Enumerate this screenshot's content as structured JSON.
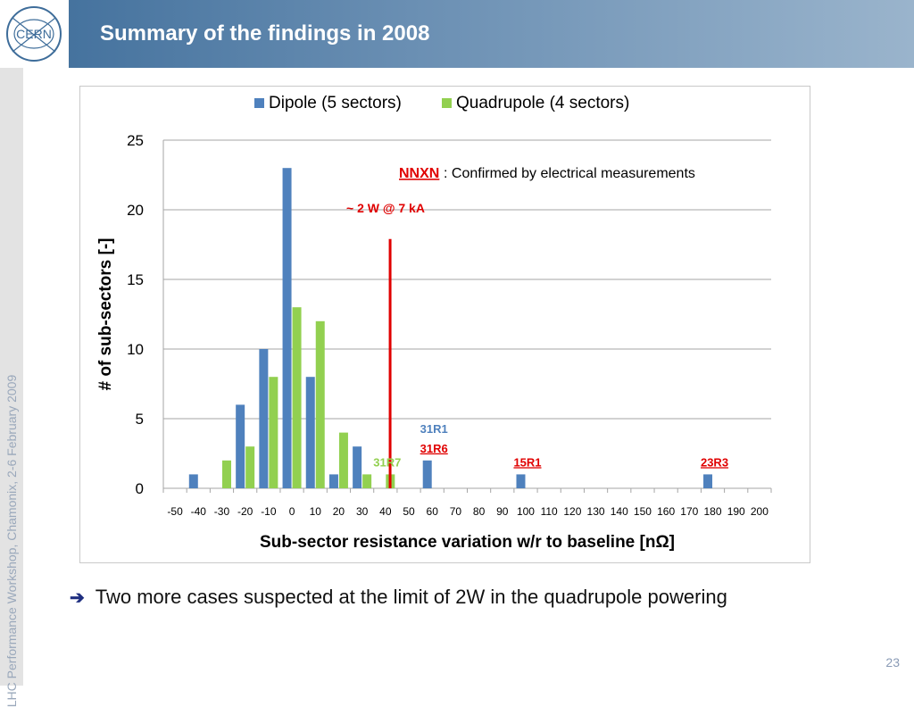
{
  "header": {
    "title": "Summary of the findings in 2008",
    "logo_text": "CERN"
  },
  "sidebar": {
    "text": "LHC Performance Workshop, Chamonix, 2-6 February 2009"
  },
  "bullet": {
    "text": "Two more cases suspected at the limit of 2W in the quadrupole powering"
  },
  "page_number": "23",
  "colors": {
    "dipole": "#4f81bd",
    "quadrupole": "#92d050",
    "red": "#e00000",
    "header_blue": "#3e6d9a",
    "label_blue": "#4f81bd"
  },
  "chart_data": {
    "type": "bar",
    "xlabel": "Sub-sector resistance variation w/r to baseline [nΩ]",
    "ylabel": "# of sub-sectors [-]",
    "ylim": [
      0,
      25
    ],
    "yticks": [
      "0",
      "5",
      "10",
      "15",
      "20",
      "25"
    ],
    "grid": true,
    "legend_position": "top",
    "categories": [
      "-50",
      "-40",
      "-30",
      "-20",
      "-10",
      "0",
      "10",
      "20",
      "30",
      "40",
      "50",
      "60",
      "70",
      "80",
      "90",
      "100",
      "110",
      "120",
      "130",
      "140",
      "150",
      "160",
      "170",
      "180",
      "190",
      "200"
    ],
    "series": [
      {
        "name": "Dipole (5 sectors)",
        "values": [
          0,
          1,
          0,
          6,
          10,
          23,
          8,
          1,
          3,
          0,
          0,
          2,
          0,
          0,
          0,
          1,
          0,
          0,
          0,
          0,
          0,
          0,
          0,
          1,
          0,
          0
        ]
      },
      {
        "name": "Quadrupole (4 sectors)",
        "values": [
          0,
          0,
          2,
          3,
          8,
          13,
          12,
          4,
          1,
          1,
          0,
          0,
          0,
          0,
          0,
          0,
          0,
          0,
          0,
          0,
          0,
          0,
          0,
          0,
          0,
          0
        ]
      }
    ],
    "annotations": {
      "nnxn_label": "NNXN",
      "nnxn_text": ": Confirmed by electrical measurements",
      "threshold_label": "~ 2 W @ 7 kA",
      "threshold_x": 42,
      "labels": [
        {
          "text": "31R1",
          "x": 60,
          "y": 4.3,
          "color": "blue",
          "underline": false
        },
        {
          "text": "31R6",
          "x": 60,
          "y": 2.9,
          "color": "red",
          "underline": true
        },
        {
          "text": "31R7",
          "x": 40,
          "y": 1.9,
          "color": "green",
          "underline": false
        },
        {
          "text": "15R1",
          "x": 100,
          "y": 1.9,
          "color": "red",
          "underline": true
        },
        {
          "text": "23R3",
          "x": 180,
          "y": 1.9,
          "color": "red",
          "underline": true
        }
      ]
    }
  }
}
